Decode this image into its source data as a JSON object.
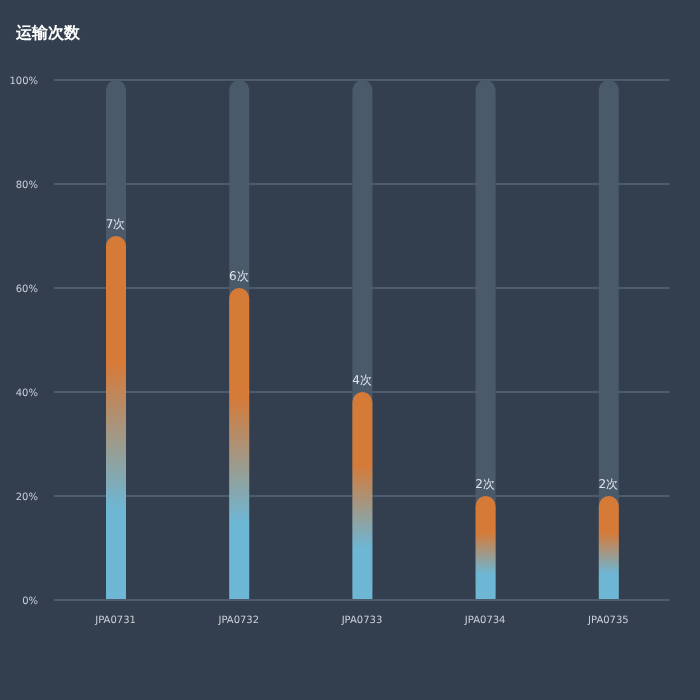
{
  "chart_data": {
    "type": "bar",
    "title": "运输次数",
    "categories": [
      "JPA0731",
      "JPA0732",
      "JPA0733",
      "JPA0734",
      "JPA0735"
    ],
    "values": [
      70,
      60,
      40,
      20,
      20
    ],
    "color": "#d67a38",
    "annotations": [
      {
        "text": "7次",
        "x": "JPA0731",
        "y": 70
      },
      {
        "text": "6次",
        "x": "JPA0732",
        "y": 60
      },
      {
        "text": "4次",
        "x": "JPA0733",
        "y": 40
      },
      {
        "text": "2次",
        "x": "JPA0734",
        "y": 20
      },
      {
        "text": "2次",
        "x": "JPA0735",
        "y": 20
      }
    ],
    "ylim": [
      0,
      100
    ],
    "yticks": [
      {
        "value": 0,
        "label": "0%"
      },
      {
        "value": 20,
        "label": "20%"
      },
      {
        "value": 40,
        "label": "40%"
      },
      {
        "value": 60,
        "label": "60%"
      },
      {
        "value": 80,
        "label": "80%"
      },
      {
        "value": 100,
        "label": "100%"
      }
    ],
    "grid": "y",
    "legend": false
  }
}
